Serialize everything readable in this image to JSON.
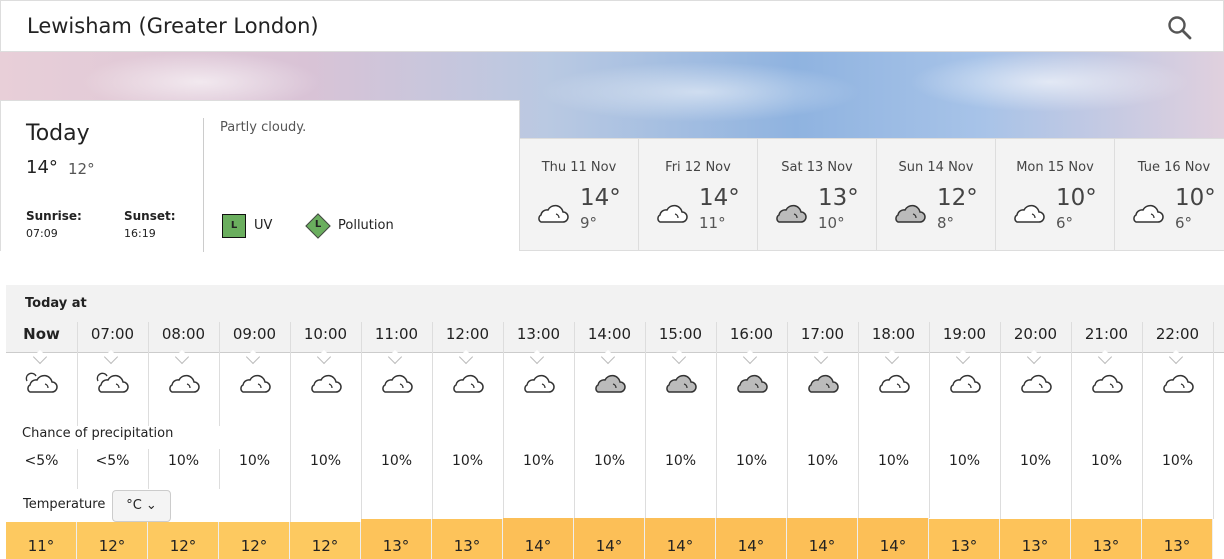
{
  "header": {
    "title": "Lewisham (Greater London)",
    "search_icon": "search-icon"
  },
  "today": {
    "label": "Today",
    "high": "14°",
    "low": "12°",
    "description": "Partly cloudy.",
    "sunrise_label": "Sunrise:",
    "sunrise": "07:09",
    "sunset_label": "Sunset:",
    "sunset": "16:19",
    "uv_level": "L",
    "uv_label": "UV",
    "pollution_level": "L",
    "pollution_label": "Pollution",
    "level_color": "#6aae5e"
  },
  "days": [
    {
      "date": "Thu 11 Nov",
      "high": "14°",
      "low": "9°",
      "icon": "cloud-light"
    },
    {
      "date": "Fri 12 Nov",
      "high": "14°",
      "low": "11°",
      "icon": "cloud-light"
    },
    {
      "date": "Sat 13 Nov",
      "high": "13°",
      "low": "10°",
      "icon": "cloud-grey"
    },
    {
      "date": "Sun 14 Nov",
      "high": "12°",
      "low": "8°",
      "icon": "cloud-grey"
    },
    {
      "date": "Mon 15 Nov",
      "high": "10°",
      "low": "6°",
      "icon": "cloud-light"
    },
    {
      "date": "Tue 16 Nov",
      "high": "10°",
      "low": "6°",
      "icon": "cloud-light"
    }
  ],
  "hourly": {
    "title": "Today at",
    "precip_label": "Chance of precipitation",
    "temp_label": "Temperature",
    "unit": "°C",
    "hours": [
      {
        "time": "Now",
        "icon": "partly-cloudy",
        "precip": "<5%",
        "temp": "11°",
        "t": 11
      },
      {
        "time": "07:00",
        "icon": "partly-cloudy",
        "precip": "<5%",
        "temp": "12°",
        "t": 12
      },
      {
        "time": "08:00",
        "icon": "cloud-light",
        "precip": "10%",
        "temp": "12°",
        "t": 12
      },
      {
        "time": "09:00",
        "icon": "cloud-light",
        "precip": "10%",
        "temp": "12°",
        "t": 12
      },
      {
        "time": "10:00",
        "icon": "cloud-light",
        "precip": "10%",
        "temp": "12°",
        "t": 12
      },
      {
        "time": "11:00",
        "icon": "cloud-light",
        "precip": "10%",
        "temp": "13°",
        "t": 13
      },
      {
        "time": "12:00",
        "icon": "cloud-light",
        "precip": "10%",
        "temp": "13°",
        "t": 13
      },
      {
        "time": "13:00",
        "icon": "cloud-light",
        "precip": "10%",
        "temp": "14°",
        "t": 14
      },
      {
        "time": "14:00",
        "icon": "cloud-grey",
        "precip": "10%",
        "temp": "14°",
        "t": 14
      },
      {
        "time": "15:00",
        "icon": "cloud-grey",
        "precip": "10%",
        "temp": "14°",
        "t": 14
      },
      {
        "time": "16:00",
        "icon": "cloud-grey",
        "precip": "10%",
        "temp": "14°",
        "t": 14
      },
      {
        "time": "17:00",
        "icon": "cloud-grey",
        "precip": "10%",
        "temp": "14°",
        "t": 14
      },
      {
        "time": "18:00",
        "icon": "cloud-light",
        "precip": "10%",
        "temp": "14°",
        "t": 14
      },
      {
        "time": "19:00",
        "icon": "cloud-light",
        "precip": "10%",
        "temp": "13°",
        "t": 13
      },
      {
        "time": "20:00",
        "icon": "cloud-light",
        "precip": "10%",
        "temp": "13°",
        "t": 13
      },
      {
        "time": "21:00",
        "icon": "cloud-light",
        "precip": "10%",
        "temp": "13°",
        "t": 13
      },
      {
        "time": "22:00",
        "icon": "cloud-light",
        "precip": "10%",
        "temp": "13°",
        "t": 13
      }
    ]
  },
  "colors": {
    "temp_11_12": "#fdc960",
    "temp_13": "#fdc35a",
    "temp_14": "#fcbf57"
  }
}
